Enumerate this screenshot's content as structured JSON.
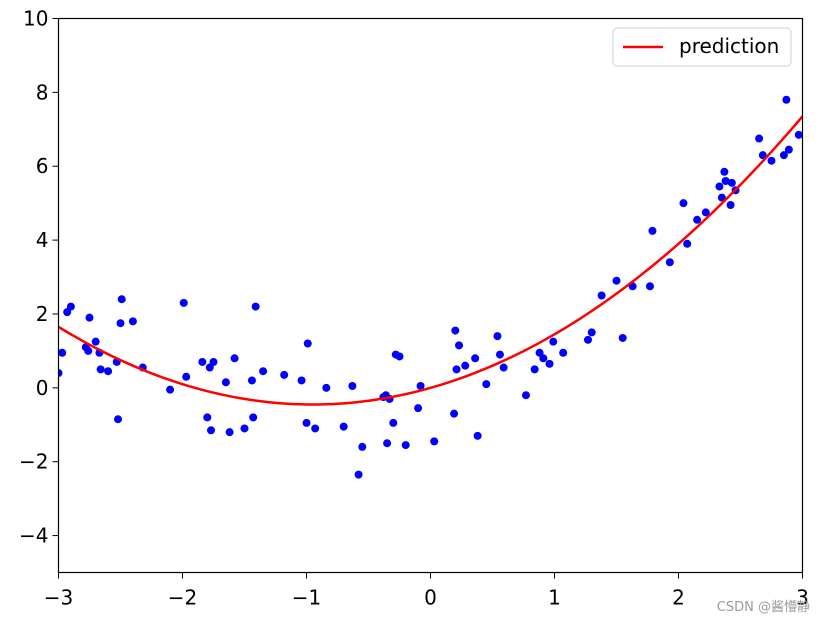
{
  "chart_data": {
    "type": "scatter",
    "title": "",
    "xlabel": "",
    "ylabel": "",
    "xlim": [
      -3,
      3
    ],
    "ylim": [
      -5,
      10
    ],
    "xticks": [
      -3,
      -2,
      -1,
      0,
      1,
      2,
      3
    ],
    "yticks": [
      -4,
      -2,
      0,
      2,
      4,
      6,
      8,
      10
    ],
    "xtick_labels": [
      "−3",
      "−2",
      "−1",
      "0",
      "1",
      "2",
      "3"
    ],
    "ytick_labels": [
      "−4",
      "−2",
      "0",
      "2",
      "4",
      "6",
      "8",
      "10"
    ],
    "grid": false,
    "legend_position": "top-right",
    "series": [
      {
        "kind": "scatter",
        "color": "#0000ff",
        "points": [
          [
            -3.0,
            0.4
          ],
          [
            -2.97,
            0.95
          ],
          [
            -2.93,
            2.05
          ],
          [
            -2.9,
            2.2
          ],
          [
            -2.78,
            1.1
          ],
          [
            -2.76,
            1.0
          ],
          [
            -2.75,
            1.9
          ],
          [
            -2.7,
            1.25
          ],
          [
            -2.67,
            0.95
          ],
          [
            -2.66,
            0.5
          ],
          [
            -2.6,
            0.45
          ],
          [
            -2.53,
            0.7
          ],
          [
            -2.52,
            -0.85
          ],
          [
            -2.5,
            1.75
          ],
          [
            -2.49,
            2.4
          ],
          [
            -2.4,
            1.8
          ],
          [
            -2.32,
            0.55
          ],
          [
            -2.1,
            -0.05
          ],
          [
            -1.99,
            2.3
          ],
          [
            -1.97,
            0.3
          ],
          [
            -1.84,
            0.7
          ],
          [
            -1.8,
            -0.8
          ],
          [
            -1.78,
            0.55
          ],
          [
            -1.77,
            -1.15
          ],
          [
            -1.75,
            0.7
          ],
          [
            -1.65,
            0.15
          ],
          [
            -1.62,
            -1.2
          ],
          [
            -1.58,
            0.8
          ],
          [
            -1.5,
            -1.1
          ],
          [
            -1.44,
            0.2
          ],
          [
            -1.43,
            -0.8
          ],
          [
            -1.41,
            2.2
          ],
          [
            -1.35,
            0.45
          ],
          [
            -1.18,
            0.35
          ],
          [
            -1.04,
            0.2
          ],
          [
            -1.0,
            -0.95
          ],
          [
            -0.99,
            1.2
          ],
          [
            -0.93,
            -1.1
          ],
          [
            -0.84,
            0.0
          ],
          [
            -0.7,
            -1.05
          ],
          [
            -0.63,
            0.05
          ],
          [
            -0.58,
            -2.35
          ],
          [
            -0.55,
            -1.6
          ],
          [
            -0.38,
            -0.25
          ],
          [
            -0.36,
            -0.2
          ],
          [
            -0.35,
            -1.5
          ],
          [
            -0.33,
            -0.3
          ],
          [
            -0.3,
            -0.95
          ],
          [
            -0.28,
            0.9
          ],
          [
            -0.25,
            0.85
          ],
          [
            -0.2,
            -1.55
          ],
          [
            -0.1,
            -0.55
          ],
          [
            -0.08,
            0.05
          ],
          [
            0.03,
            -1.45
          ],
          [
            0.19,
            -0.7
          ],
          [
            0.2,
            1.55
          ],
          [
            0.21,
            0.5
          ],
          [
            0.23,
            1.15
          ],
          [
            0.28,
            0.6
          ],
          [
            0.36,
            0.8
          ],
          [
            0.38,
            -1.3
          ],
          [
            0.45,
            0.1
          ],
          [
            0.54,
            1.4
          ],
          [
            0.56,
            0.9
          ],
          [
            0.59,
            0.55
          ],
          [
            0.77,
            -0.2
          ],
          [
            0.84,
            0.5
          ],
          [
            0.88,
            0.95
          ],
          [
            0.91,
            0.8
          ],
          [
            0.96,
            0.65
          ],
          [
            0.99,
            1.25
          ],
          [
            1.07,
            0.95
          ],
          [
            1.27,
            1.3
          ],
          [
            1.3,
            1.5
          ],
          [
            1.38,
            2.5
          ],
          [
            1.5,
            2.9
          ],
          [
            1.55,
            1.35
          ],
          [
            1.63,
            2.75
          ],
          [
            1.77,
            2.75
          ],
          [
            1.79,
            4.25
          ],
          [
            1.93,
            3.4
          ],
          [
            2.04,
            5.0
          ],
          [
            2.07,
            3.9
          ],
          [
            2.15,
            4.55
          ],
          [
            2.22,
            4.75
          ],
          [
            2.33,
            5.45
          ],
          [
            2.35,
            5.15
          ],
          [
            2.37,
            5.85
          ],
          [
            2.38,
            5.6
          ],
          [
            2.42,
            4.95
          ],
          [
            2.43,
            5.55
          ],
          [
            2.46,
            5.35
          ],
          [
            2.65,
            6.75
          ],
          [
            2.68,
            6.3
          ],
          [
            2.75,
            6.15
          ],
          [
            2.85,
            6.3
          ],
          [
            2.87,
            7.8
          ],
          [
            2.89,
            6.45
          ],
          [
            2.97,
            6.85
          ]
        ]
      },
      {
        "kind": "line",
        "name": "prediction",
        "color": "#ff0000",
        "coefficients": {
          "a": 0.5,
          "b": 0.95,
          "c": 0.0
        },
        "note_x_range": [
          -3,
          3
        ]
      }
    ]
  },
  "watermark": "CSDN @酱懵静"
}
